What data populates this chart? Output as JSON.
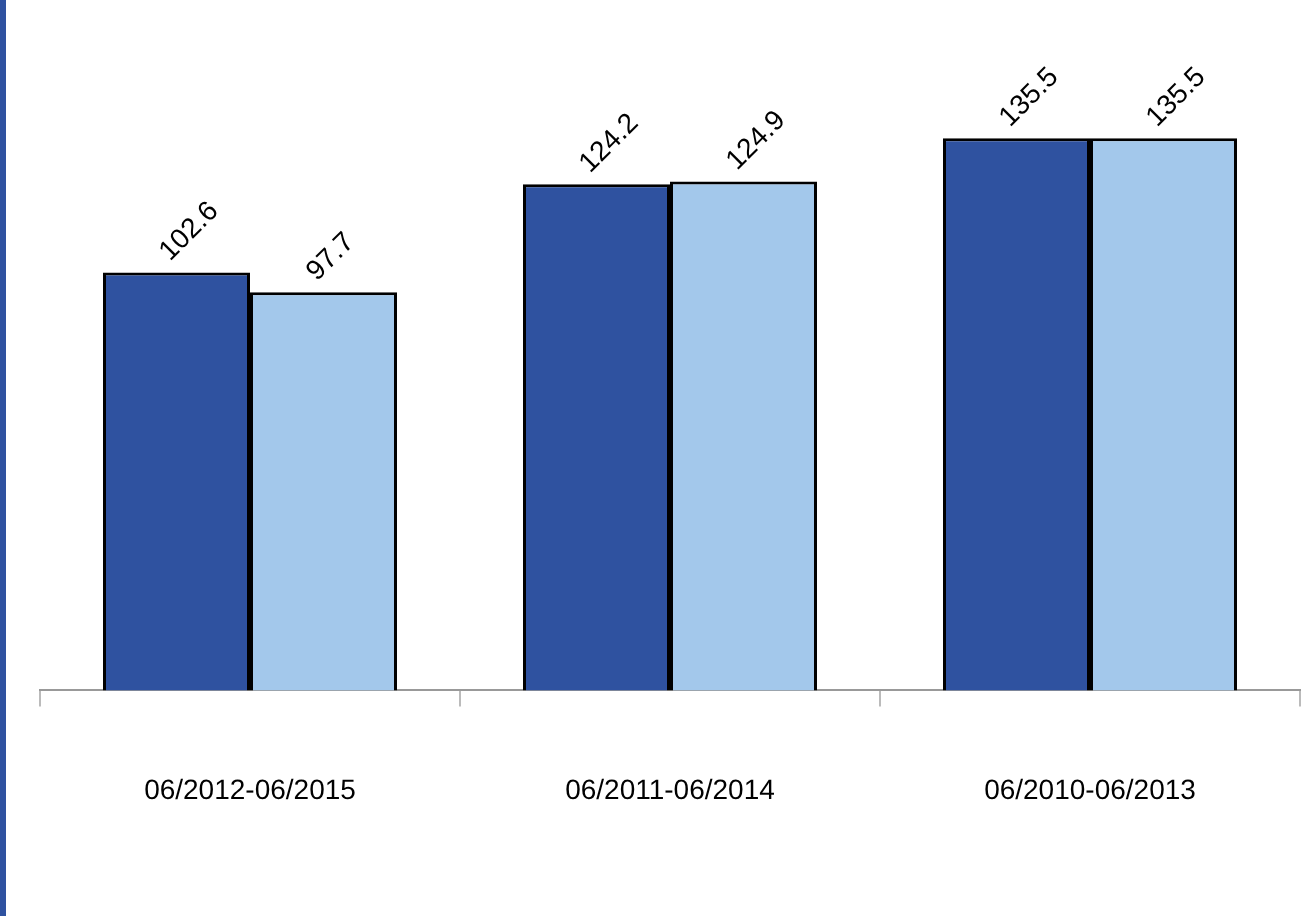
{
  "chart_data": {
    "type": "bar",
    "categories": [
      "06/2012-06/2015",
      "06/2011-06/2014",
      "06/2010-06/2013"
    ],
    "series": [
      {
        "color": "#2f52a0",
        "values": [
          102.6,
          124.2,
          135.5
        ]
      },
      {
        "color": "#a3c8eb",
        "values": [
          97.7,
          124.9,
          135.5
        ]
      }
    ],
    "data_labels": true,
    "legend": false,
    "grid": false
  }
}
